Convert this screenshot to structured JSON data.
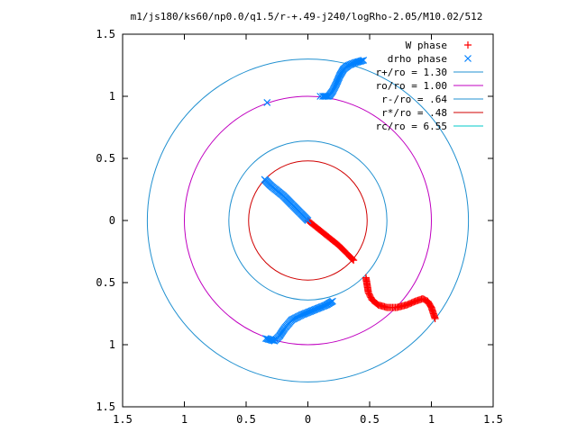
{
  "chart_data": {
    "type": "scatter",
    "title": "m1/js180/ks60/np0.0/q1.5/r-+.49-j240/logRho-2.05/M10.02/512",
    "xlim": [
      -1.5,
      1.5
    ],
    "ylim": [
      -1.5,
      1.5
    ],
    "x_ticks": [
      -1.5,
      -1,
      -0.5,
      0,
      0.5,
      1,
      1.5
    ],
    "y_ticks": [
      -1.5,
      -1,
      -0.5,
      0,
      0.5,
      1,
      1.5
    ],
    "x_tick_labels": [
      "1.5",
      "1",
      "0.5",
      "0",
      "0.5",
      "1",
      "1.5"
    ],
    "y_tick_labels": [
      "1.5",
      "1",
      "0.5",
      "0",
      "0.5",
      "1",
      "1.5"
    ],
    "grid": false,
    "legend_position": "top-right",
    "legend": [
      {
        "label": "W phase",
        "marker": "plus",
        "color": "#ff0000"
      },
      {
        "label": "drho phase",
        "marker": "cross",
        "color": "#0080ff"
      },
      {
        "label": "r+/ro = 1.30",
        "marker": "line",
        "color": "#2090d0"
      },
      {
        "label": "ro/ro = 1.00",
        "marker": "line",
        "color": "#c000c0"
      },
      {
        "label": "r-/ro = .64",
        "marker": "line",
        "color": "#2090d0"
      },
      {
        "label": "r*/ro = .48",
        "marker": "line",
        "color": "#d00000"
      },
      {
        "label": "rc/ro = 6.55",
        "marker": "line",
        "color": "#00c8c8"
      }
    ],
    "circles": [
      {
        "name": "r+/ro = 1.30",
        "radius": 1.3,
        "color": "#2090d0"
      },
      {
        "name": "ro/ro = 1.00",
        "radius": 1.0,
        "color": "#c000c0"
      },
      {
        "name": "r-/ro = .64",
        "radius": 0.64,
        "color": "#2090d0"
      },
      {
        "name": "r*/ro = .48",
        "radius": 0.48,
        "color": "#d00000"
      }
    ],
    "series": [
      {
        "name": "W phase",
        "color": "#ff0000",
        "segments": [
          [
            [
              0.0,
              0.0
            ],
            [
              0.05,
              -0.04
            ],
            [
              0.1,
              -0.08
            ],
            [
              0.15,
              -0.12
            ],
            [
              0.2,
              -0.16
            ],
            [
              0.25,
              -0.2
            ],
            [
              0.3,
              -0.25
            ],
            [
              0.34,
              -0.29
            ],
            [
              0.37,
              -0.32
            ]
          ],
          [
            [
              0.47,
              -0.46
            ],
            [
              0.48,
              -0.52
            ],
            [
              0.49,
              -0.58
            ],
            [
              0.52,
              -0.64
            ],
            [
              0.57,
              -0.68
            ],
            [
              0.64,
              -0.7
            ],
            [
              0.72,
              -0.7
            ],
            [
              0.8,
              -0.68
            ],
            [
              0.87,
              -0.65
            ],
            [
              0.93,
              -0.63
            ],
            [
              0.97,
              -0.65
            ],
            [
              1.0,
              -0.7
            ],
            [
              1.02,
              -0.76
            ],
            [
              1.03,
              -0.79
            ]
          ]
        ]
      },
      {
        "name": "drho phase",
        "color": "#0080ff",
        "segments": [
          [
            [
              -0.35,
              0.33
            ],
            [
              -0.3,
              0.28
            ],
            [
              -0.25,
              0.24
            ],
            [
              -0.2,
              0.2
            ],
            [
              -0.15,
              0.15
            ],
            [
              -0.1,
              0.1
            ],
            [
              -0.05,
              0.05
            ],
            [
              0.0,
              0.0
            ]
          ],
          [
            [
              0.12,
              1.0
            ],
            [
              0.17,
              1.0
            ],
            [
              0.2,
              1.04
            ],
            [
              0.23,
              1.1
            ],
            [
              0.26,
              1.17
            ],
            [
              0.29,
              1.22
            ],
            [
              0.33,
              1.25
            ],
            [
              0.38,
              1.27
            ],
            [
              0.45,
              1.29
            ]
          ],
          [
            [
              -0.34,
              -0.95
            ],
            [
              -0.27,
              -0.97
            ],
            [
              -0.23,
              -0.93
            ],
            [
              -0.19,
              -0.87
            ],
            [
              -0.13,
              -0.8
            ],
            [
              -0.05,
              -0.76
            ],
            [
              0.05,
              -0.72
            ],
            [
              0.15,
              -0.68
            ],
            [
              0.2,
              -0.65
            ]
          ]
        ],
        "outliers": [
          [
            -0.33,
            0.95
          ],
          [
            0.1,
            1.0
          ]
        ]
      }
    ]
  }
}
